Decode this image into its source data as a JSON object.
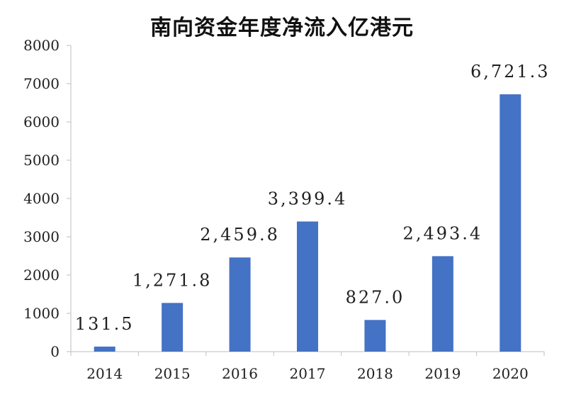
{
  "chart_data": {
    "type": "bar",
    "title": "南向资金年度净流入亿港元",
    "categories": [
      "2014",
      "2015",
      "2016",
      "2017",
      "2018",
      "2019",
      "2020"
    ],
    "values": [
      131.5,
      1271.8,
      2459.8,
      3399.4,
      827.0,
      2493.4,
      6721.3
    ],
    "data_labels": [
      "131.5",
      "1,271.8",
      "2,459.8",
      "3,399.4",
      "827.0",
      "2,493.4",
      "6,721.3"
    ],
    "y_ticks": [
      "0",
      "1000",
      "2000",
      "3000",
      "4000",
      "5000",
      "6000",
      "7000",
      "8000"
    ],
    "ylim": [
      0,
      8000
    ],
    "xlabel": "",
    "ylabel": "",
    "grid": false,
    "legend": "none",
    "bar_color": "#4472C4",
    "axis_color": "#bfbfbf"
  }
}
